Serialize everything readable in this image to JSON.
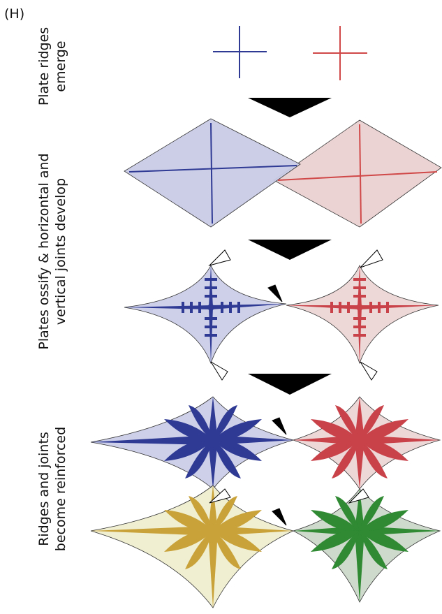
{
  "panel_label": "(H)",
  "stages": [
    {
      "lines": [
        "Plate ridges",
        "emerge"
      ]
    },
    {
      "lines": [
        "Plates ossify & horizontal and",
        "vertical joints develop"
      ]
    },
    {
      "lines": [
        "Ridges and joints",
        "become reinforced"
      ]
    }
  ]
}
